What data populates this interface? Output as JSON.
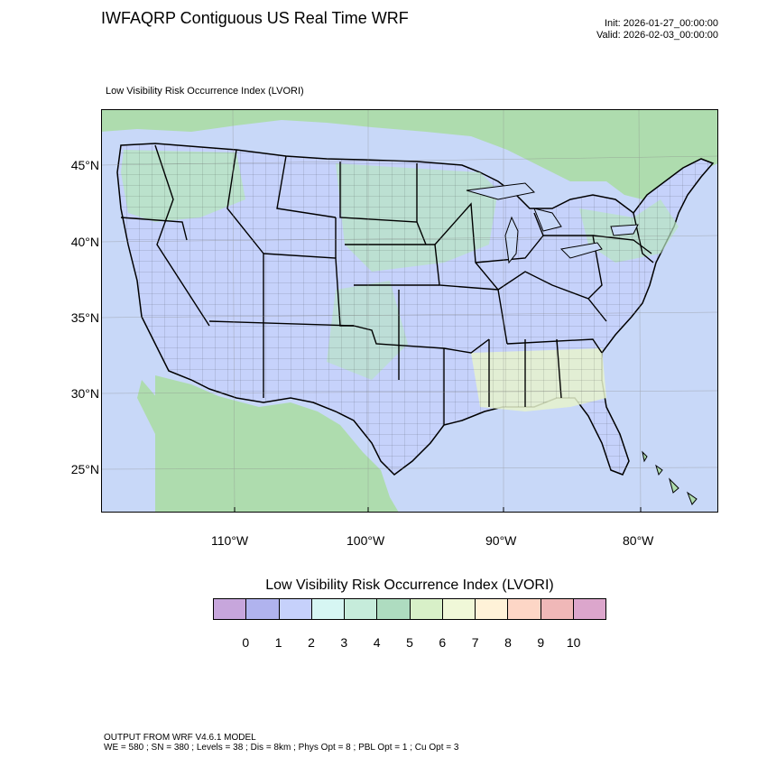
{
  "header": {
    "title": "IWFAQRP Contiguous US Real Time WRF",
    "init": "Init: 2026-01-27_00:00:00",
    "valid": "Valid: 2026-02-03_00:00:00"
  },
  "map": {
    "subtitle": "Low Visibility Risk Occurrence Index   (LVORI)",
    "lat_labels": [
      "45°N",
      "40°N",
      "35°N",
      "30°N",
      "25°N"
    ],
    "lon_labels": [
      "110°W",
      "100°W",
      "90°W",
      "80°W"
    ],
    "colors": {
      "ocean": "#c8d8f8",
      "land": "#c6d2fb",
      "canada_mexico": "#aedcae",
      "green_patch": "#b8e6c0",
      "yellow_patch": "#e6f3cc",
      "border": "#000000"
    }
  },
  "colorbar": {
    "title": "Low Visibility Risk Occurrence Index  (LVORI)",
    "colors": [
      "#c7a6dc",
      "#b0b3ee",
      "#c6d1fb",
      "#d6f6f3",
      "#c6ecdb",
      "#aedcc0",
      "#d8f0c8",
      "#f0f8d8",
      "#fff2d8",
      "#fdd6c6",
      "#f0b8b8",
      "#dca6cc"
    ],
    "ticks": [
      "0",
      "1",
      "2",
      "3",
      "4",
      "5",
      "6",
      "7",
      "8",
      "9",
      "10"
    ]
  },
  "footer": {
    "line1": "OUTPUT FROM WRF V4.6.1 MODEL",
    "line2": "WE = 580 ; SN = 380 ; Levels = 38 ; Dis = 8km ; Phys Opt = 8 ; PBL Opt = 1 ; Cu Opt = 3"
  }
}
